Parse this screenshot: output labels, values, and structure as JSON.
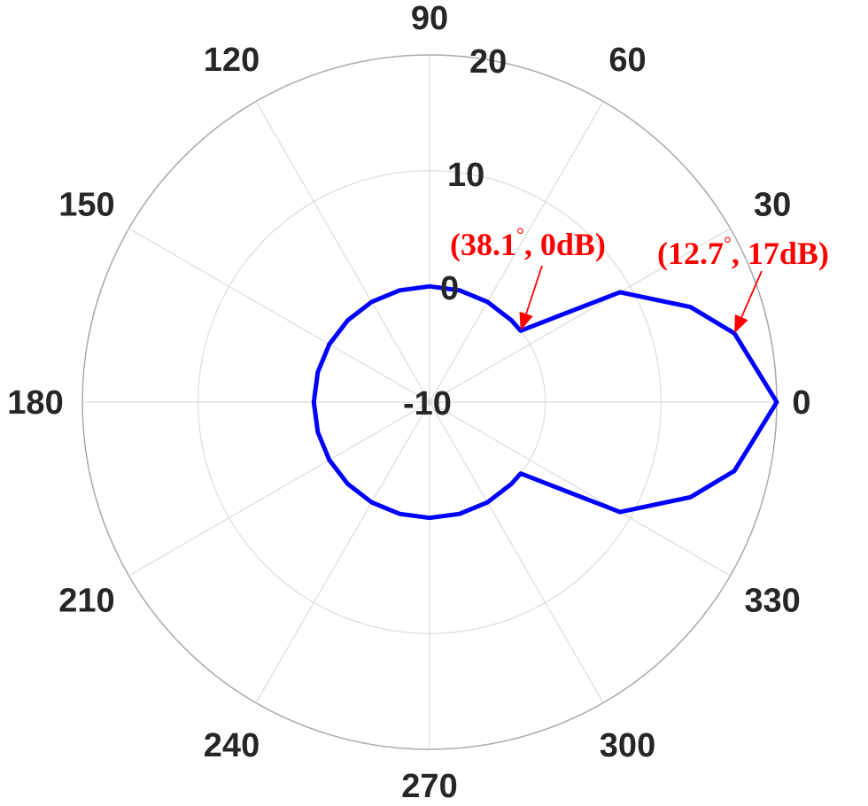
{
  "chart_data": {
    "type": "line",
    "coordinate_system": "polar",
    "title": "",
    "angle_unit": "deg",
    "r_unit": "dB",
    "r_lim": [
      -10,
      20
    ],
    "r_ticks": [
      {
        "value": -10,
        "label": "-10"
      },
      {
        "value": 0,
        "label": "0"
      },
      {
        "value": 10,
        "label": "10"
      },
      {
        "value": 20,
        "label": "20"
      }
    ],
    "theta_ticks": [
      {
        "value": 0,
        "label": "0"
      },
      {
        "value": 30,
        "label": "30"
      },
      {
        "value": 60,
        "label": "60"
      },
      {
        "value": 90,
        "label": "90"
      },
      {
        "value": 120,
        "label": "120"
      },
      {
        "value": 150,
        "label": "150"
      },
      {
        "value": 180,
        "label": "180"
      },
      {
        "value": 210,
        "label": "210"
      },
      {
        "value": 240,
        "label": "240"
      },
      {
        "value": 270,
        "label": "270"
      },
      {
        "value": 300,
        "label": "300"
      },
      {
        "value": 330,
        "label": "330"
      }
    ],
    "grid": true,
    "series": [
      {
        "color": "#0000ff",
        "theta": [
          0,
          12.7,
          20,
          30,
          38.1,
          45,
          60,
          75,
          90,
          105,
          120,
          135,
          150,
          165,
          180,
          195,
          210,
          225,
          240,
          255,
          270,
          285,
          300,
          315,
          321.9,
          330,
          340,
          347.3,
          360
        ],
        "r": [
          20,
          17,
          14,
          9,
          0,
          0,
          0,
          0,
          0,
          0,
          0,
          0,
          0,
          0,
          0,
          0,
          0,
          0,
          0,
          0,
          0,
          0,
          0,
          0,
          0,
          9,
          14,
          17,
          20
        ]
      }
    ],
    "annotations": [
      {
        "main": "(38.1",
        "deg": "°",
        "rest": ", 0dB)",
        "theta": 38.1,
        "r": 0,
        "color": "#ff0000"
      },
      {
        "main": "(12.7",
        "deg": "°",
        "rest": ", 17dB)",
        "theta": 12.7,
        "r": 17,
        "color": "#ff0000"
      }
    ]
  }
}
